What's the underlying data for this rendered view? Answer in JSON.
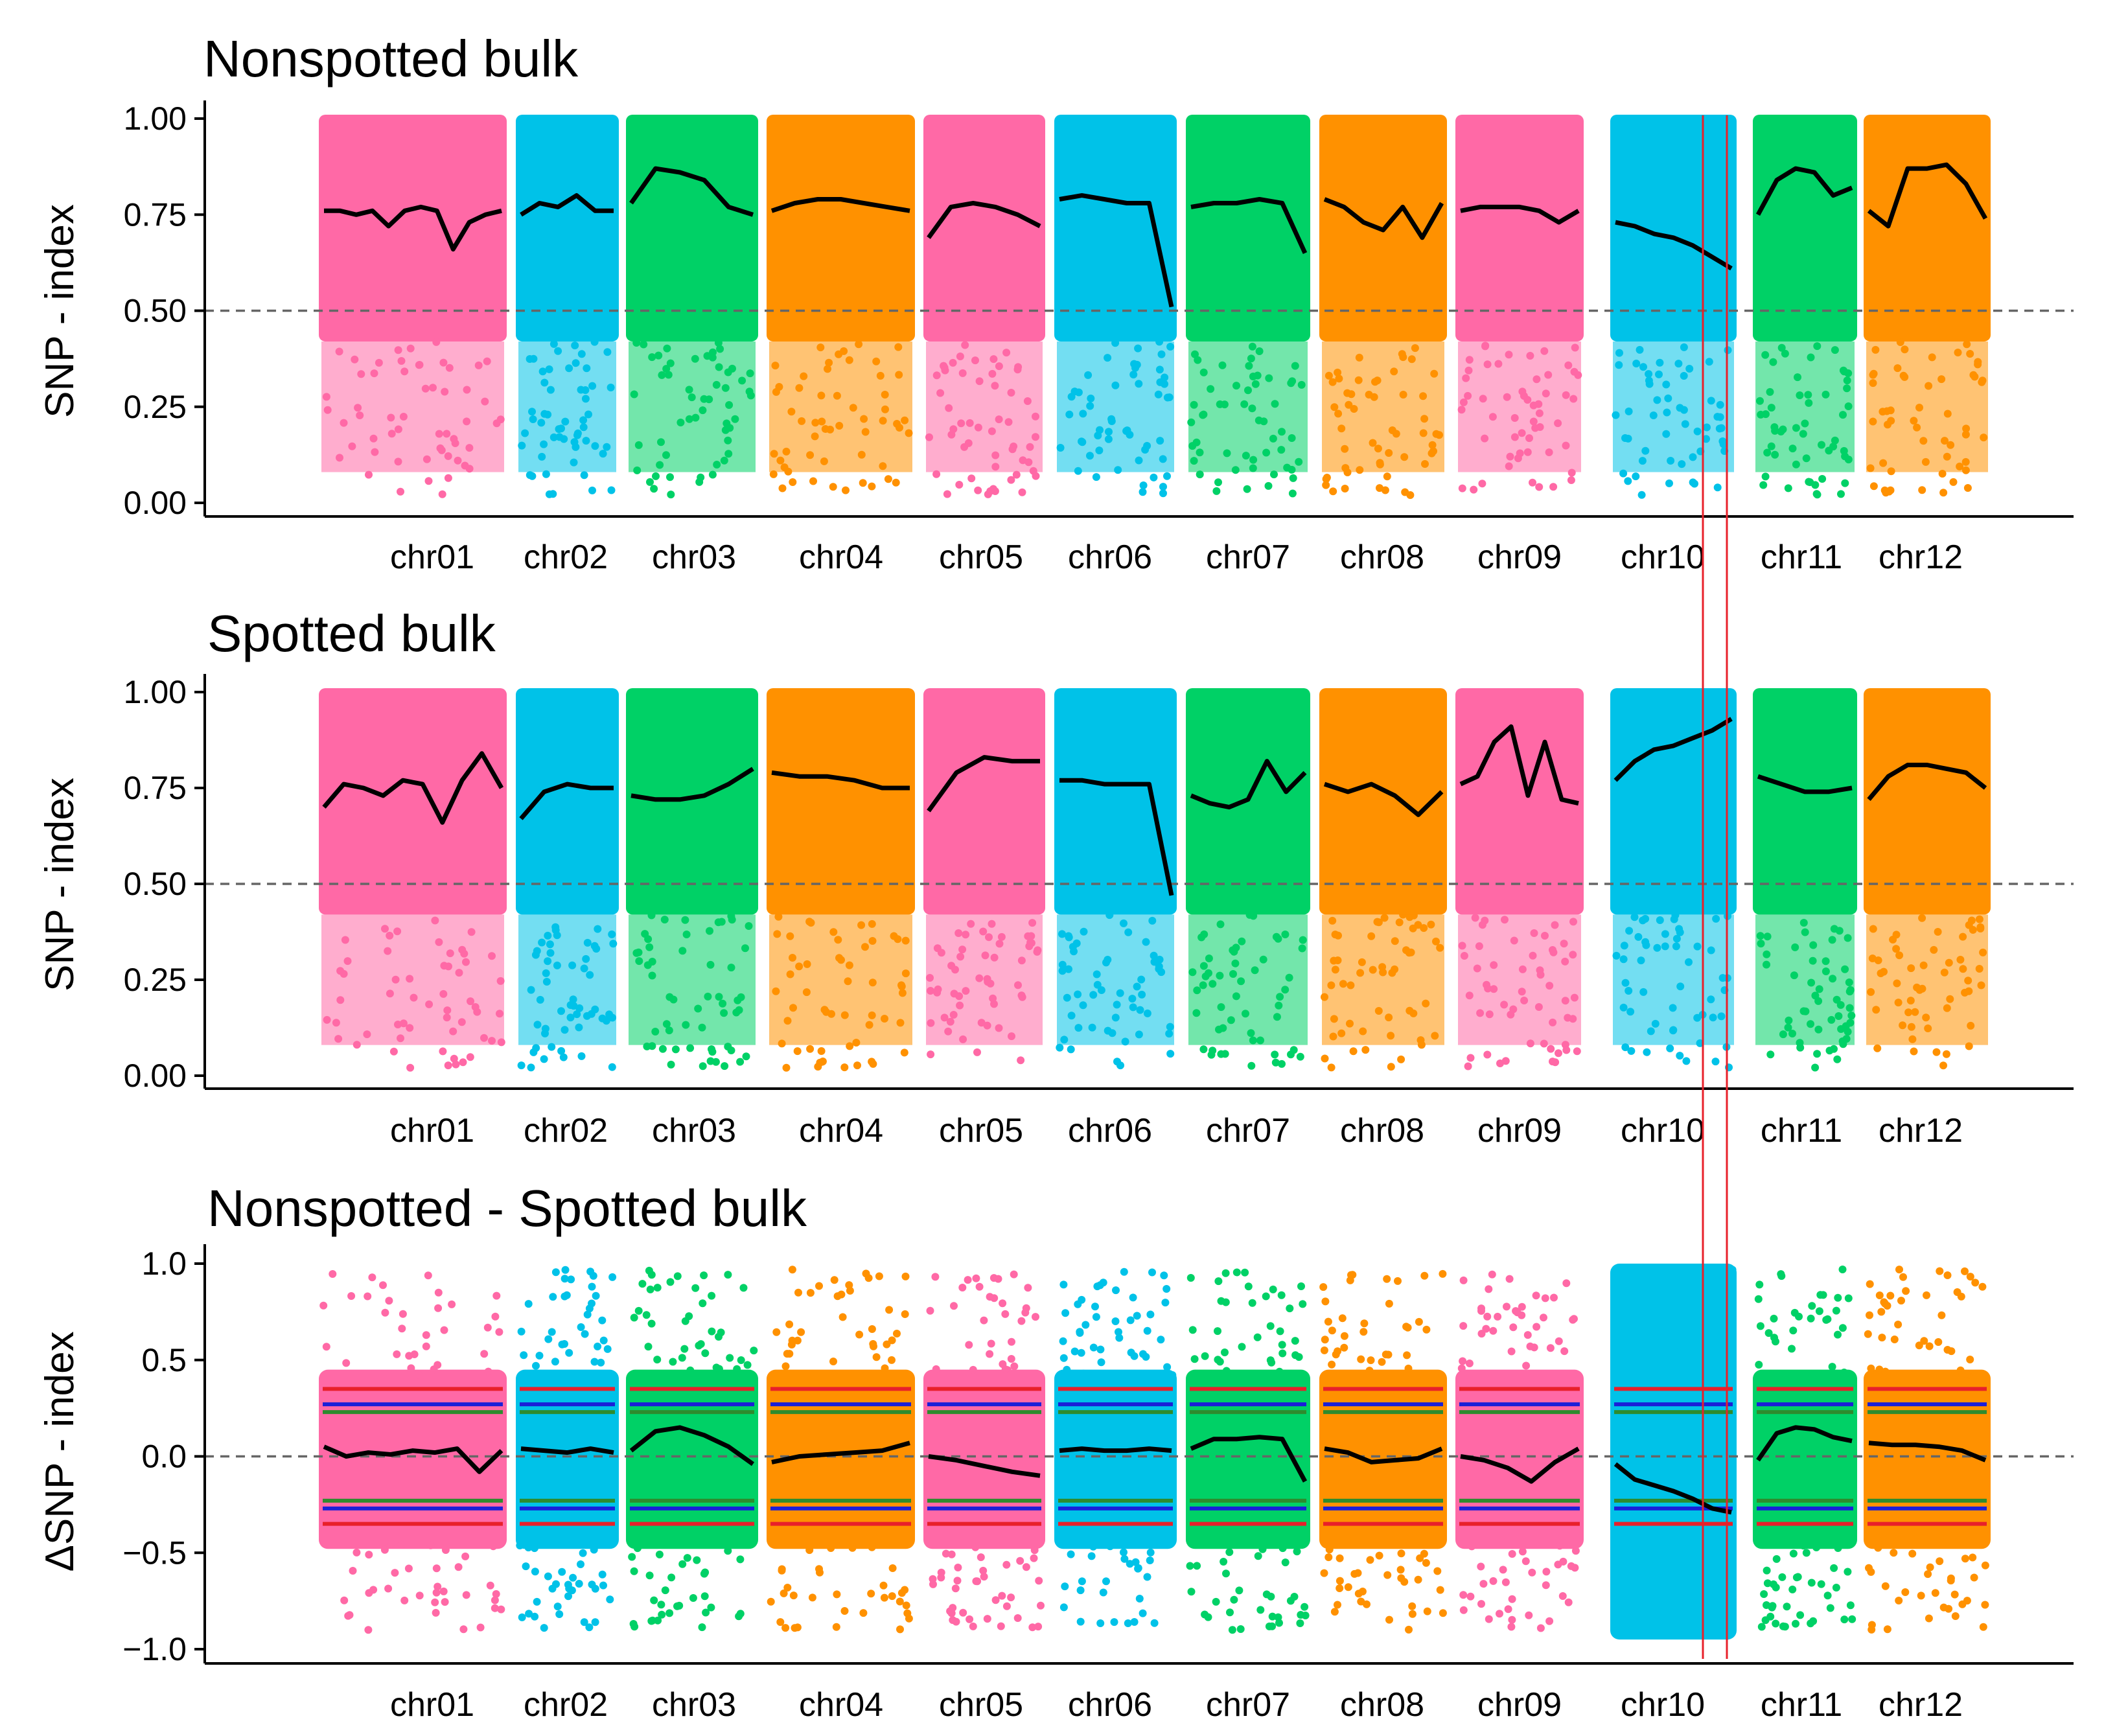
{
  "chart_data": [
    {
      "type": "scatter",
      "title": "Nonspotted bulk",
      "xlabel": "",
      "ylabel": "SNP - index",
      "ylim": [
        0,
        1
      ],
      "yticks": [
        "0.00",
        "0.25",
        "0.50",
        "0.75",
        "1.00"
      ],
      "ytick_values": [
        0,
        0.25,
        0.5,
        0.75,
        1
      ],
      "reference_line": 0.5,
      "categories": [
        "chr01",
        "chr02",
        "chr03",
        "chr04",
        "chr05",
        "chr06",
        "chr07",
        "chr08",
        "chr09",
        "chr10",
        "chr11",
        "chr12"
      ],
      "series": [
        {
          "values": [
            0.76,
            0.76,
            0.75,
            0.76,
            0.72,
            0.76,
            0.77,
            0.76,
            0.66,
            0.73,
            0.75,
            0.76
          ]
        },
        {
          "values": [
            0.75,
            0.78,
            0.77,
            0.8,
            0.76,
            0.76
          ]
        },
        {
          "values": [
            0.78,
            0.87,
            0.86,
            0.84,
            0.77,
            0.75
          ]
        },
        {
          "values": [
            0.76,
            0.78,
            0.79,
            0.79,
            0.78,
            0.77,
            0.76
          ]
        },
        {
          "values": [
            0.69,
            0.77,
            0.78,
            0.77,
            0.75,
            0.72
          ]
        },
        {
          "values": [
            0.79,
            0.8,
            0.79,
            0.78,
            0.78,
            0.51
          ]
        },
        {
          "values": [
            0.77,
            0.78,
            0.78,
            0.79,
            0.78,
            0.65
          ]
        },
        {
          "values": [
            0.79,
            0.77,
            0.73,
            0.71,
            0.77,
            0.69,
            0.78
          ]
        },
        {
          "values": [
            0.76,
            0.77,
            0.77,
            0.77,
            0.76,
            0.73,
            0.76
          ]
        },
        {
          "values": [
            0.73,
            0.72,
            0.7,
            0.69,
            0.67,
            0.64,
            0.61
          ]
        },
        {
          "values": [
            0.75,
            0.84,
            0.87,
            0.86,
            0.8,
            0.82
          ]
        },
        {
          "values": [
            0.76,
            0.72,
            0.87,
            0.87,
            0.88,
            0.83,
            0.74
          ]
        }
      ]
    },
    {
      "type": "scatter",
      "title": "Spotted bulk",
      "xlabel": "",
      "ylabel": "SNP - index",
      "ylim": [
        0,
        1
      ],
      "yticks": [
        "0.00",
        "0.25",
        "0.50",
        "0.75",
        "1.00"
      ],
      "ytick_values": [
        0,
        0.25,
        0.5,
        0.75,
        1
      ],
      "reference_line": 0.5,
      "categories": [
        "chr01",
        "chr02",
        "chr03",
        "chr04",
        "chr05",
        "chr06",
        "chr07",
        "chr08",
        "chr09",
        "chr10",
        "chr11",
        "chr12"
      ],
      "series": [
        {
          "values": [
            0.7,
            0.76,
            0.75,
            0.73,
            0.77,
            0.76,
            0.66,
            0.77,
            0.84,
            0.75
          ]
        },
        {
          "values": [
            0.67,
            0.74,
            0.76,
            0.75,
            0.75
          ]
        },
        {
          "values": [
            0.73,
            0.72,
            0.72,
            0.73,
            0.76,
            0.8
          ]
        },
        {
          "values": [
            0.79,
            0.78,
            0.78,
            0.77,
            0.75,
            0.75
          ]
        },
        {
          "values": [
            0.69,
            0.79,
            0.83,
            0.82,
            0.82
          ]
        },
        {
          "values": [
            0.77,
            0.77,
            0.76,
            0.76,
            0.76,
            0.47
          ]
        },
        {
          "values": [
            0.73,
            0.71,
            0.7,
            0.72,
            0.82,
            0.74,
            0.79
          ]
        },
        {
          "values": [
            0.76,
            0.74,
            0.76,
            0.73,
            0.68,
            0.74
          ]
        },
        {
          "values": [
            0.76,
            0.78,
            0.87,
            0.91,
            0.73,
            0.87,
            0.72,
            0.71
          ]
        },
        {
          "values": [
            0.77,
            0.82,
            0.85,
            0.86,
            0.88,
            0.9,
            0.93
          ]
        },
        {
          "values": [
            0.78,
            0.76,
            0.74,
            0.74,
            0.75
          ]
        },
        {
          "values": [
            0.72,
            0.78,
            0.81,
            0.81,
            0.8,
            0.79,
            0.75
          ]
        }
      ]
    },
    {
      "type": "scatter",
      "title": "Nonspotted - Spotted bulk",
      "xlabel": "",
      "ylabel": "ΔSNP - index",
      "ylim": [
        -1,
        1
      ],
      "yticks": [
        "−1.0",
        "−0.5",
        "0.0",
        "0.5",
        "1.0"
      ],
      "ytick_values": [
        -1,
        -0.5,
        0,
        0.5,
        1
      ],
      "reference_line": 0,
      "categories": [
        "chr01",
        "chr02",
        "chr03",
        "chr04",
        "chr05",
        "chr06",
        "chr07",
        "chr08",
        "chr09",
        "chr10",
        "chr11",
        "chr12"
      ],
      "series": [
        {
          "values": [
            0.05,
            0.0,
            0.02,
            0.01,
            0.03,
            0.02,
            0.04,
            -0.08,
            0.03
          ]
        },
        {
          "values": [
            0.04,
            0.03,
            0.02,
            0.04,
            0.02
          ]
        },
        {
          "values": [
            0.03,
            0.13,
            0.15,
            0.11,
            0.05,
            -0.04
          ]
        },
        {
          "values": [
            -0.03,
            0.0,
            0.01,
            0.02,
            0.03,
            0.07
          ]
        },
        {
          "values": [
            0.0,
            -0.02,
            -0.05,
            -0.08,
            -0.1
          ]
        },
        {
          "values": [
            0.03,
            0.04,
            0.03,
            0.03,
            0.04,
            0.03
          ]
        },
        {
          "values": [
            0.04,
            0.09,
            0.09,
            0.1,
            0.09,
            -0.13
          ]
        },
        {
          "values": [
            0.04,
            0.02,
            -0.03,
            -0.02,
            -0.01,
            0.04
          ]
        },
        {
          "values": [
            0.0,
            -0.02,
            -0.06,
            -0.13,
            -0.03,
            0.04
          ]
        },
        {
          "values": [
            -0.04,
            -0.12,
            -0.15,
            -0.18,
            -0.22,
            -0.27,
            -0.29
          ]
        },
        {
          "values": [
            -0.02,
            0.12,
            0.15,
            0.14,
            0.1,
            0.08
          ]
        },
        {
          "values": [
            0.07,
            0.06,
            0.06,
            0.05,
            0.03,
            -0.02
          ]
        }
      ],
      "confidence_bands": [
        {
          "color": "#e8202a",
          "upper": 0.35,
          "lower": -0.35
        },
        {
          "color": "#1a1fd8",
          "upper": 0.27,
          "lower": -0.27
        },
        {
          "color": "#2e8b2e",
          "upper": 0.23,
          "lower": -0.23
        }
      ]
    }
  ],
  "chromosome_colors": [
    "#ff69a6",
    "#00c2e8",
    "#00d166",
    "#ff9100",
    "#ff69a6",
    "#00c2e8",
    "#00d166",
    "#ff9100",
    "#ff69a6",
    "#00c2e8",
    "#00d166",
    "#ff9100"
  ],
  "highlight_color": "#e8202a",
  "trend_color": "#000000",
  "reference_line_color": "#666666"
}
